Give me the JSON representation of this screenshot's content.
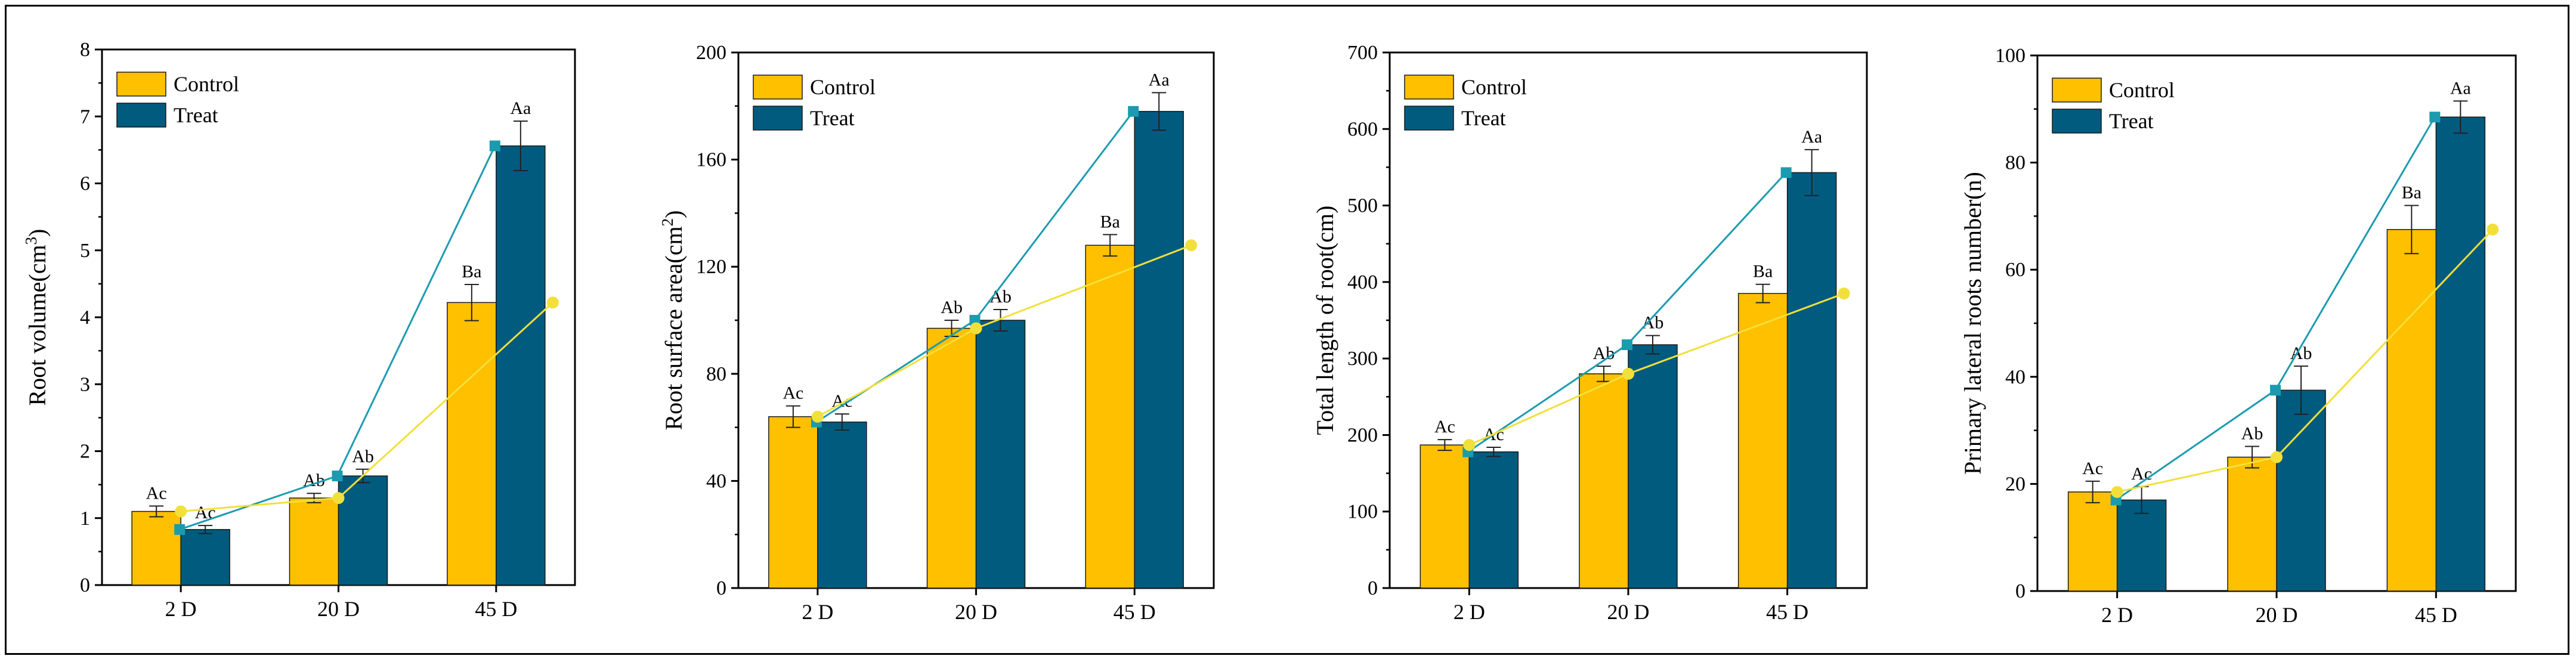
{
  "colors": {
    "control": "#FFC000",
    "treat": "#005B7F",
    "control_line": "#F2E03A",
    "treat_line": "#1A9BB0"
  },
  "chart_data": [
    {
      "type": "bar",
      "ylabel_main": "Root volume(cm",
      "ylabel_sup": "3",
      "ylabel_tail": ")",
      "categories": [
        "2 D",
        "20 D",
        "45 D"
      ],
      "ylim": [
        0,
        8
      ],
      "yticks": [
        "0",
        "1",
        "2",
        "3",
        "4",
        "5",
        "6",
        "7",
        "8"
      ],
      "legend_position": "top-left",
      "series": [
        {
          "name": "Control",
          "values": [
            1.1,
            1.3,
            4.22
          ],
          "errors": [
            0.08,
            0.07,
            0.27
          ],
          "labels": [
            "Ac",
            "Ab",
            "Ba"
          ]
        },
        {
          "name": "Treat",
          "values": [
            0.83,
            1.63,
            6.56
          ],
          "errors": [
            0.06,
            0.1,
            0.37
          ],
          "labels": [
            "Ac",
            "Ab",
            "Aa"
          ]
        }
      ]
    },
    {
      "type": "bar",
      "ylabel_main": "Root surface area(cm",
      "ylabel_sup": "2",
      "ylabel_tail": ")",
      "categories": [
        "2 D",
        "20 D",
        "45 D"
      ],
      "ylim": [
        0,
        200
      ],
      "yticks": [
        "0",
        "40",
        "80",
        "120",
        "160",
        "200"
      ],
      "legend_position": "top-left",
      "series": [
        {
          "name": "Control",
          "values": [
            64,
            97,
            128
          ],
          "errors": [
            4,
            3,
            4
          ],
          "labels": [
            "Ac",
            "Ab",
            "Ba"
          ]
        },
        {
          "name": "Treat",
          "values": [
            62,
            100,
            178
          ],
          "errors": [
            3,
            4,
            7
          ],
          "labels": [
            "Ac",
            "Ab",
            "Aa"
          ]
        }
      ]
    },
    {
      "type": "bar",
      "ylabel_main": "Total length of root(cm)",
      "ylabel_sup": "",
      "ylabel_tail": "",
      "categories": [
        "2 D",
        "20 D",
        "45 D"
      ],
      "ylim": [
        0,
        700
      ],
      "yticks": [
        "0",
        "100",
        "200",
        "300",
        "400",
        "500",
        "600",
        "700"
      ],
      "legend_position": "top-left",
      "series": [
        {
          "name": "Control",
          "values": [
            187,
            280,
            385
          ],
          "errors": [
            7,
            10,
            12
          ],
          "labels": [
            "Ac",
            "Ab",
            "Ba"
          ]
        },
        {
          "name": "Treat",
          "values": [
            178,
            318,
            543
          ],
          "errors": [
            6,
            12,
            30
          ],
          "labels": [
            "Ac",
            "Ab",
            "Aa"
          ]
        }
      ]
    },
    {
      "type": "bar",
      "ylabel_main": "Primary lateral roots number(n)",
      "ylabel_sup": "",
      "ylabel_tail": "",
      "categories": [
        "2 D",
        "20 D",
        "45 D"
      ],
      "ylim": [
        0,
        100
      ],
      "yticks": [
        "0",
        "20",
        "40",
        "60",
        "80",
        "100"
      ],
      "legend_position": "top-left",
      "series": [
        {
          "name": "Control",
          "values": [
            18.5,
            25,
            67.5
          ],
          "errors": [
            2,
            2,
            4.5
          ],
          "labels": [
            "Ac",
            "Ab",
            "Ba"
          ]
        },
        {
          "name": "Treat",
          "values": [
            17,
            37.5,
            88.5
          ],
          "errors": [
            2.5,
            4.5,
            3
          ],
          "labels": [
            "Ac",
            "Ab",
            "Aa"
          ]
        }
      ]
    }
  ]
}
